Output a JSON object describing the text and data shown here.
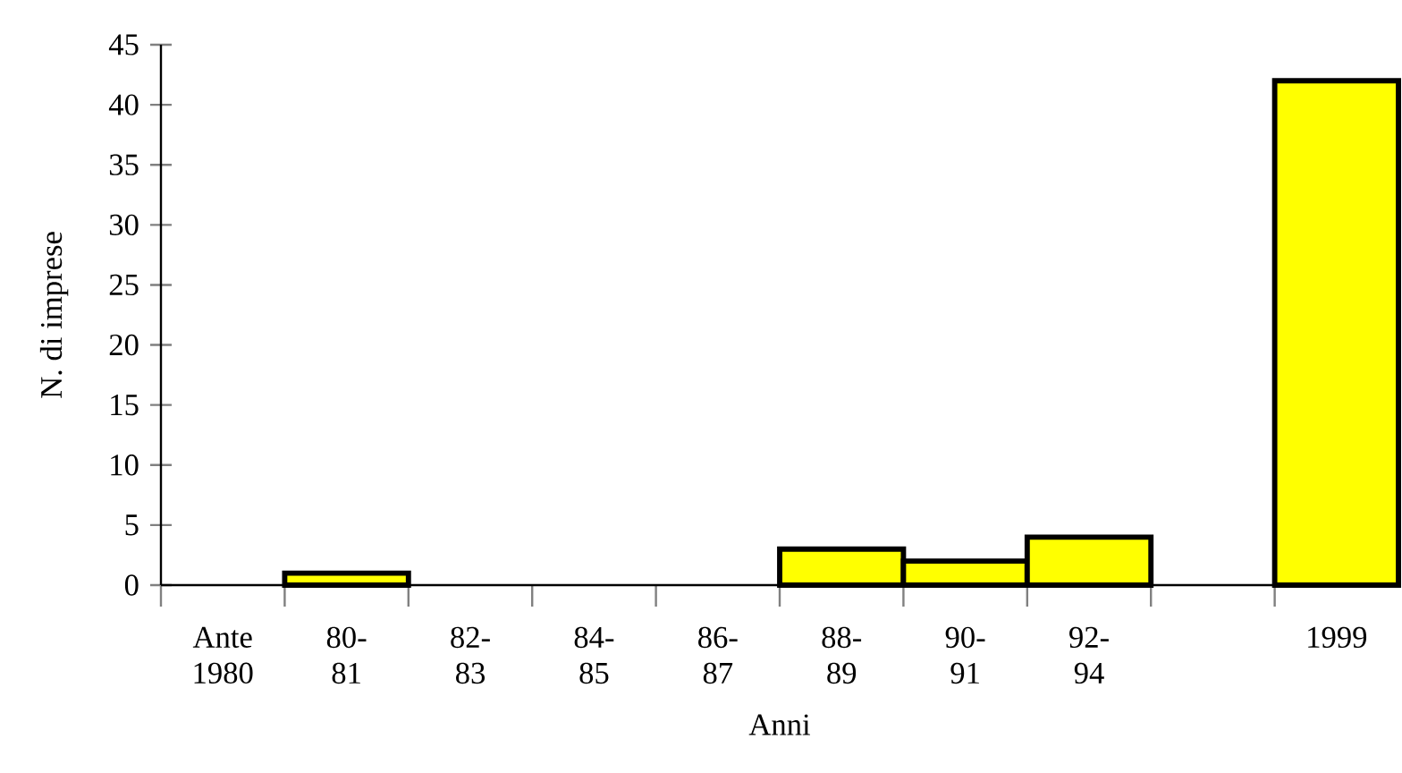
{
  "chart_data": {
    "type": "bar",
    "xlabel": "Anni",
    "ylabel": "N. di imprese",
    "categories": [
      "Ante 1980",
      "80-81",
      "82-83",
      "84-85",
      "86-87",
      "88-89",
      "90-91",
      "92-94",
      null,
      "1999"
    ],
    "values": [
      0,
      1,
      0,
      0,
      0,
      3,
      2,
      4,
      0,
      42
    ],
    "color": "#ffff00",
    "ylim": [
      0,
      45
    ],
    "yticks": [
      0,
      5,
      10,
      15,
      20,
      25,
      30,
      35,
      40,
      45
    ],
    "grid": false
  }
}
